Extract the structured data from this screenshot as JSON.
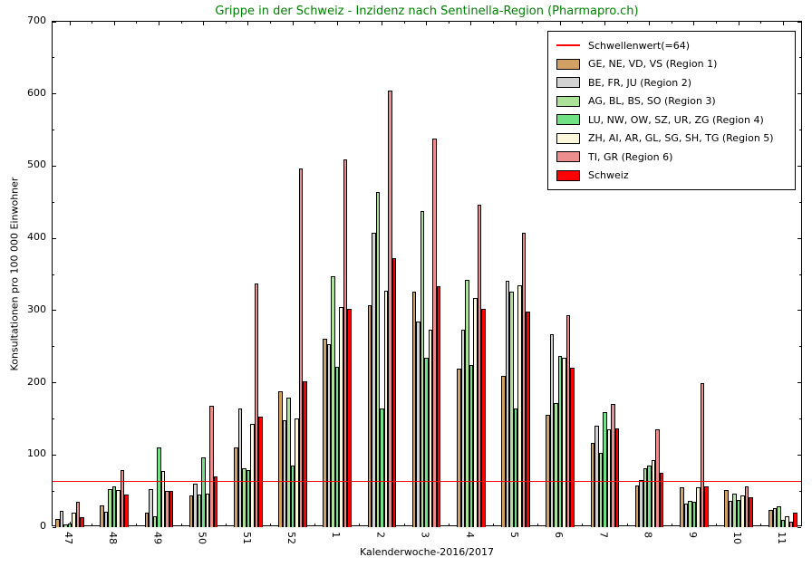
{
  "chart_data": {
    "type": "bar",
    "title": "Grippe in der Schweiz - Inzidenz nach Sentinella-Region (Pharmapro.ch)",
    "title_color": "#008000",
    "xlabel": "Kalenderwoche-2016/2017",
    "ylabel": "Konsultationen pro 100 000 Einwohner",
    "ylim": [
      0,
      700
    ],
    "yticks": [
      0,
      100,
      200,
      300,
      400,
      500,
      600,
      700
    ],
    "ytick_minor_step": 50,
    "grid": false,
    "legend_position": "top-right",
    "categories": [
      "47",
      "48",
      "49",
      "50",
      "51",
      "52",
      "1",
      "2",
      "3",
      "4",
      "5",
      "6",
      "7",
      "8",
      "9",
      "10",
      "11"
    ],
    "threshold": {
      "label": "Schwellenwert(=64)",
      "value": 64,
      "color": "#ff0000"
    },
    "series": [
      {
        "name": "GE, NE, VD, VS (Region 1)",
        "color": "#d1a065",
        "values": [
          11,
          30,
          20,
          44,
          111,
          188,
          261,
          308,
          326,
          220,
          209,
          156,
          117,
          58,
          55,
          52,
          24
        ]
      },
      {
        "name": "BE, FR, JU (Region 2)",
        "color": "#d3d3d3",
        "values": [
          23,
          22,
          53,
          60,
          164,
          148,
          253,
          408,
          285,
          273,
          341,
          267,
          141,
          65,
          33,
          36,
          26
        ]
      },
      {
        "name": "AG, BL, BS, SO (Region 3)",
        "color": "#abe298",
        "values": [
          4,
          53,
          15,
          45,
          82,
          179,
          348,
          464,
          438,
          343,
          326,
          172,
          103,
          81,
          37,
          47,
          29
        ]
      },
      {
        "name": "LU, NW, OW, SZ, UR, ZG (Region 4)",
        "color": "#70e283",
        "values": [
          5,
          57,
          110,
          97,
          79,
          85,
          222,
          165,
          235,
          225,
          164,
          237,
          159,
          85,
          35,
          38,
          10
        ]
      },
      {
        "name": "ZH, AI, AR, GL, SG, SH, TG (Region 5)",
        "color": "#fbf9d9",
        "values": [
          20,
          52,
          78,
          46,
          143,
          151,
          305,
          328,
          274,
          317,
          335,
          235,
          136,
          93,
          55,
          44,
          15
        ]
      },
      {
        "name": "TI, GR (Region 6)",
        "color": "#ec8e8e",
        "values": [
          35,
          79,
          50,
          168,
          338,
          497,
          509,
          605,
          538,
          447,
          408,
          294,
          171,
          135,
          200,
          57,
          8
        ]
      },
      {
        "name": "Schweiz",
        "color": "#fe0000",
        "values": [
          14,
          45,
          50,
          70,
          153,
          202,
          302,
          373,
          334,
          303,
          299,
          221,
          137,
          75,
          57,
          42,
          20
        ]
      }
    ]
  }
}
